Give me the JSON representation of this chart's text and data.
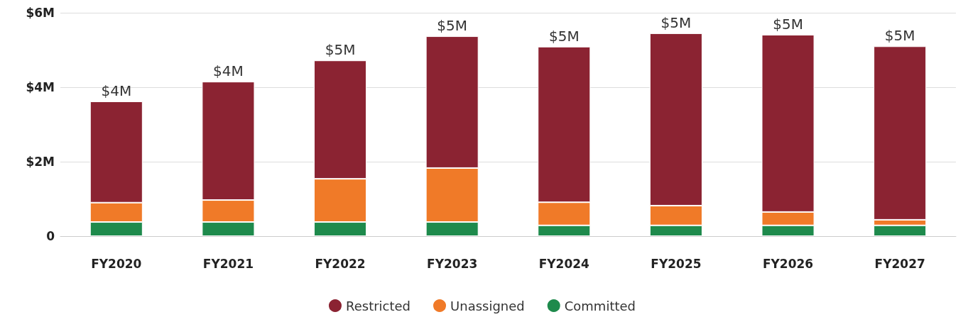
{
  "chart_data": {
    "type": "bar",
    "stacked": true,
    "categories": [
      "FY2020",
      "FY2021",
      "FY2022",
      "FY2023",
      "FY2024",
      "FY2025",
      "FY2026",
      "FY2027"
    ],
    "series": [
      {
        "name": "Committed",
        "color": "#1e8a4c",
        "values": [
          0.38,
          0.38,
          0.38,
          0.38,
          0.29,
          0.29,
          0.29,
          0.29
        ]
      },
      {
        "name": "Unassigned",
        "color": "#f07a28",
        "values": [
          0.52,
          0.59,
          1.16,
          1.45,
          0.62,
          0.53,
          0.36,
          0.15
        ]
      },
      {
        "name": "Restricted",
        "color": "#8b2332",
        "values": [
          2.72,
          3.18,
          3.18,
          3.54,
          4.18,
          4.63,
          4.76,
          4.66
        ]
      }
    ],
    "totals": [
      "$4M",
      "$4M",
      "$5M",
      "$5M",
      "$5M",
      "$5M",
      "$5M",
      "$5M"
    ],
    "ylim": [
      0,
      6
    ],
    "yticks": [
      {
        "value": 0,
        "label": "0"
      },
      {
        "value": 2,
        "label": "$2M"
      },
      {
        "value": 4,
        "label": "$4M"
      },
      {
        "value": 6,
        "label": "$6M"
      }
    ],
    "grid": "y",
    "legend": "bottom"
  }
}
